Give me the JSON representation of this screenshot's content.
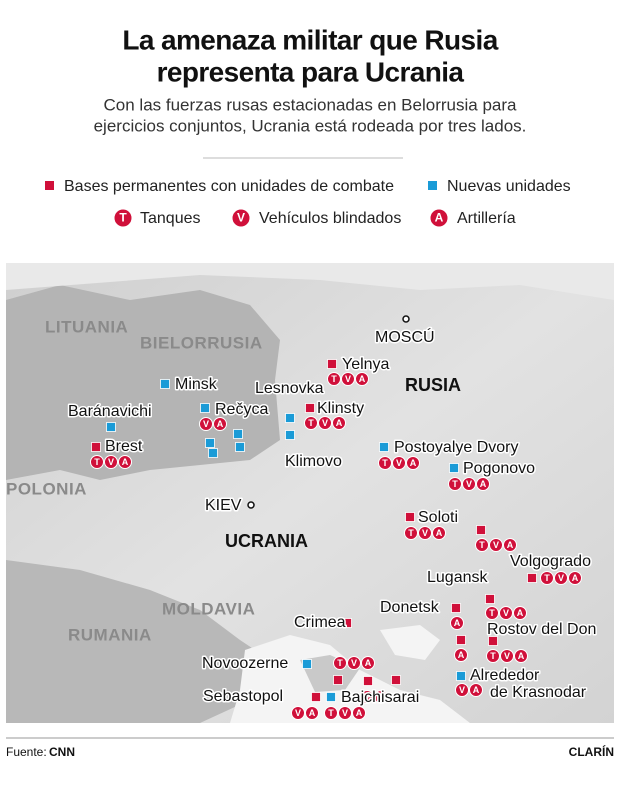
{
  "header": {
    "title_lines": [
      "La amenaza militar que Rusia",
      "representa para Ucrania"
    ],
    "subtitle_lines": [
      "Con las fuerzas rusas estacionadas en Belorrusia para",
      "ejercicios conjuntos, Ucrania está rodeada por tres lados."
    ]
  },
  "legend": {
    "bases": [
      "Bases permanentes con unidades de combate",
      "Nuevas unidades"
    ],
    "units": [
      {
        "symbol": "T",
        "label": "Tanques"
      },
      {
        "symbol": "V",
        "label": "Vehículos blindados"
      },
      {
        "symbol": "A",
        "label": "Artillería"
      }
    ]
  },
  "map": {
    "countries": [
      "LITUANIA",
      "BIELORRUSIA",
      "POLONIA",
      "UCRANIA",
      "MOLDAVIA",
      "RUMANIA",
      "RUSIA"
    ],
    "cities": [
      "MOSCÚ",
      "KIEV"
    ],
    "places": [
      "Yelnya",
      "Minsk",
      "Lesnovka",
      "Klinsty",
      "Rečyca",
      "Baránavichi",
      "Brest",
      "Klimovo",
      "Postoyalye Dvory",
      "Pogonovo",
      "Soloti",
      "Volgogrado",
      "Lugansk",
      "Donetsk",
      "Rostov del Don",
      "Crimea",
      "Novoozerne",
      "Alrededor",
      "de Krasnodar",
      "Sebastopol",
      "Bajchisarai"
    ]
  },
  "footer": {
    "source_label": "Fuente:",
    "source": "CNN",
    "brand": "CLARÍN"
  }
}
